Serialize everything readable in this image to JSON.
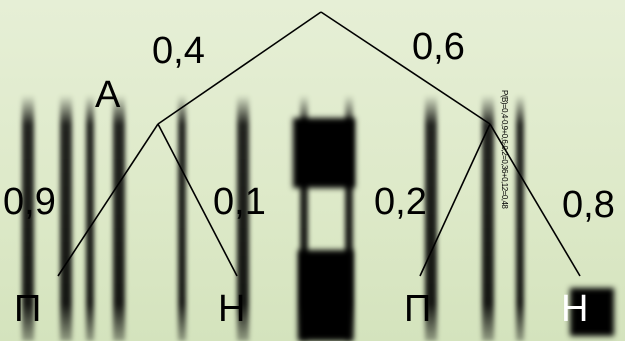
{
  "diagram": {
    "root_branches": {
      "left_prob": "0,4",
      "right_prob": "0,6"
    },
    "node_a_label": "А",
    "node_a_branches": {
      "left_prob": "0,9",
      "right_prob": "0,1"
    },
    "node_b_branches": {
      "left_prob": "0,2",
      "right_prob": "0,8"
    },
    "leaves": [
      "П",
      "Н",
      "П",
      "Н"
    ],
    "tiny_annotation": "P(B)=0,4·0,9+0,6·0,2=0,36+0,12=0,48"
  },
  "colors": {
    "background": "#dde9c8",
    "lines": "#000000",
    "text": "#000000"
  }
}
